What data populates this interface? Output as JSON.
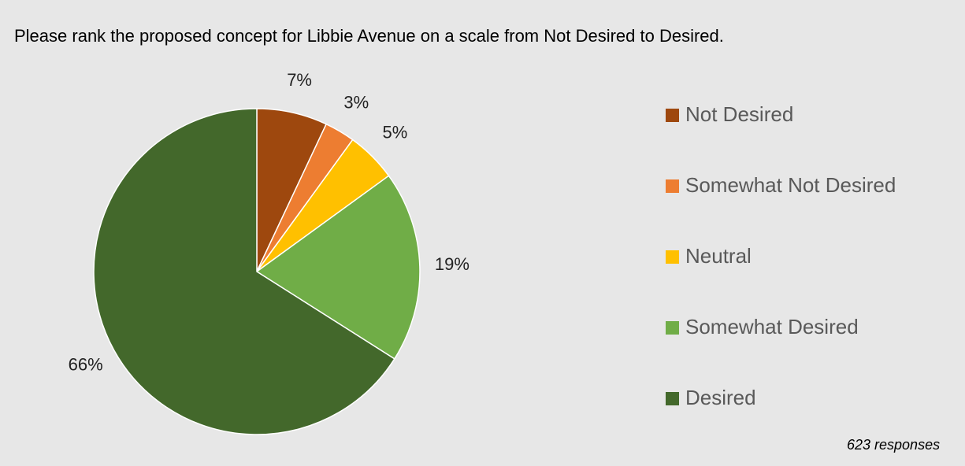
{
  "chart_data": {
    "type": "pie",
    "title": "Please rank the proposed concept for Libbie Avenue on a scale from Not Desired to Desired.",
    "categories": [
      "Not Desired",
      "Somewhat Not Desired",
      "Neutral",
      "Somewhat Desired",
      "Desired"
    ],
    "values": [
      7,
      3,
      5,
      19,
      66
    ],
    "value_labels": [
      "7%",
      "3%",
      "5%",
      "19%",
      "66%"
    ],
    "colors": [
      "#9e480e",
      "#ed7d31",
      "#ffc000",
      "#70ad47",
      "#43682b"
    ],
    "legend": "right",
    "annotation": "623 responses"
  }
}
